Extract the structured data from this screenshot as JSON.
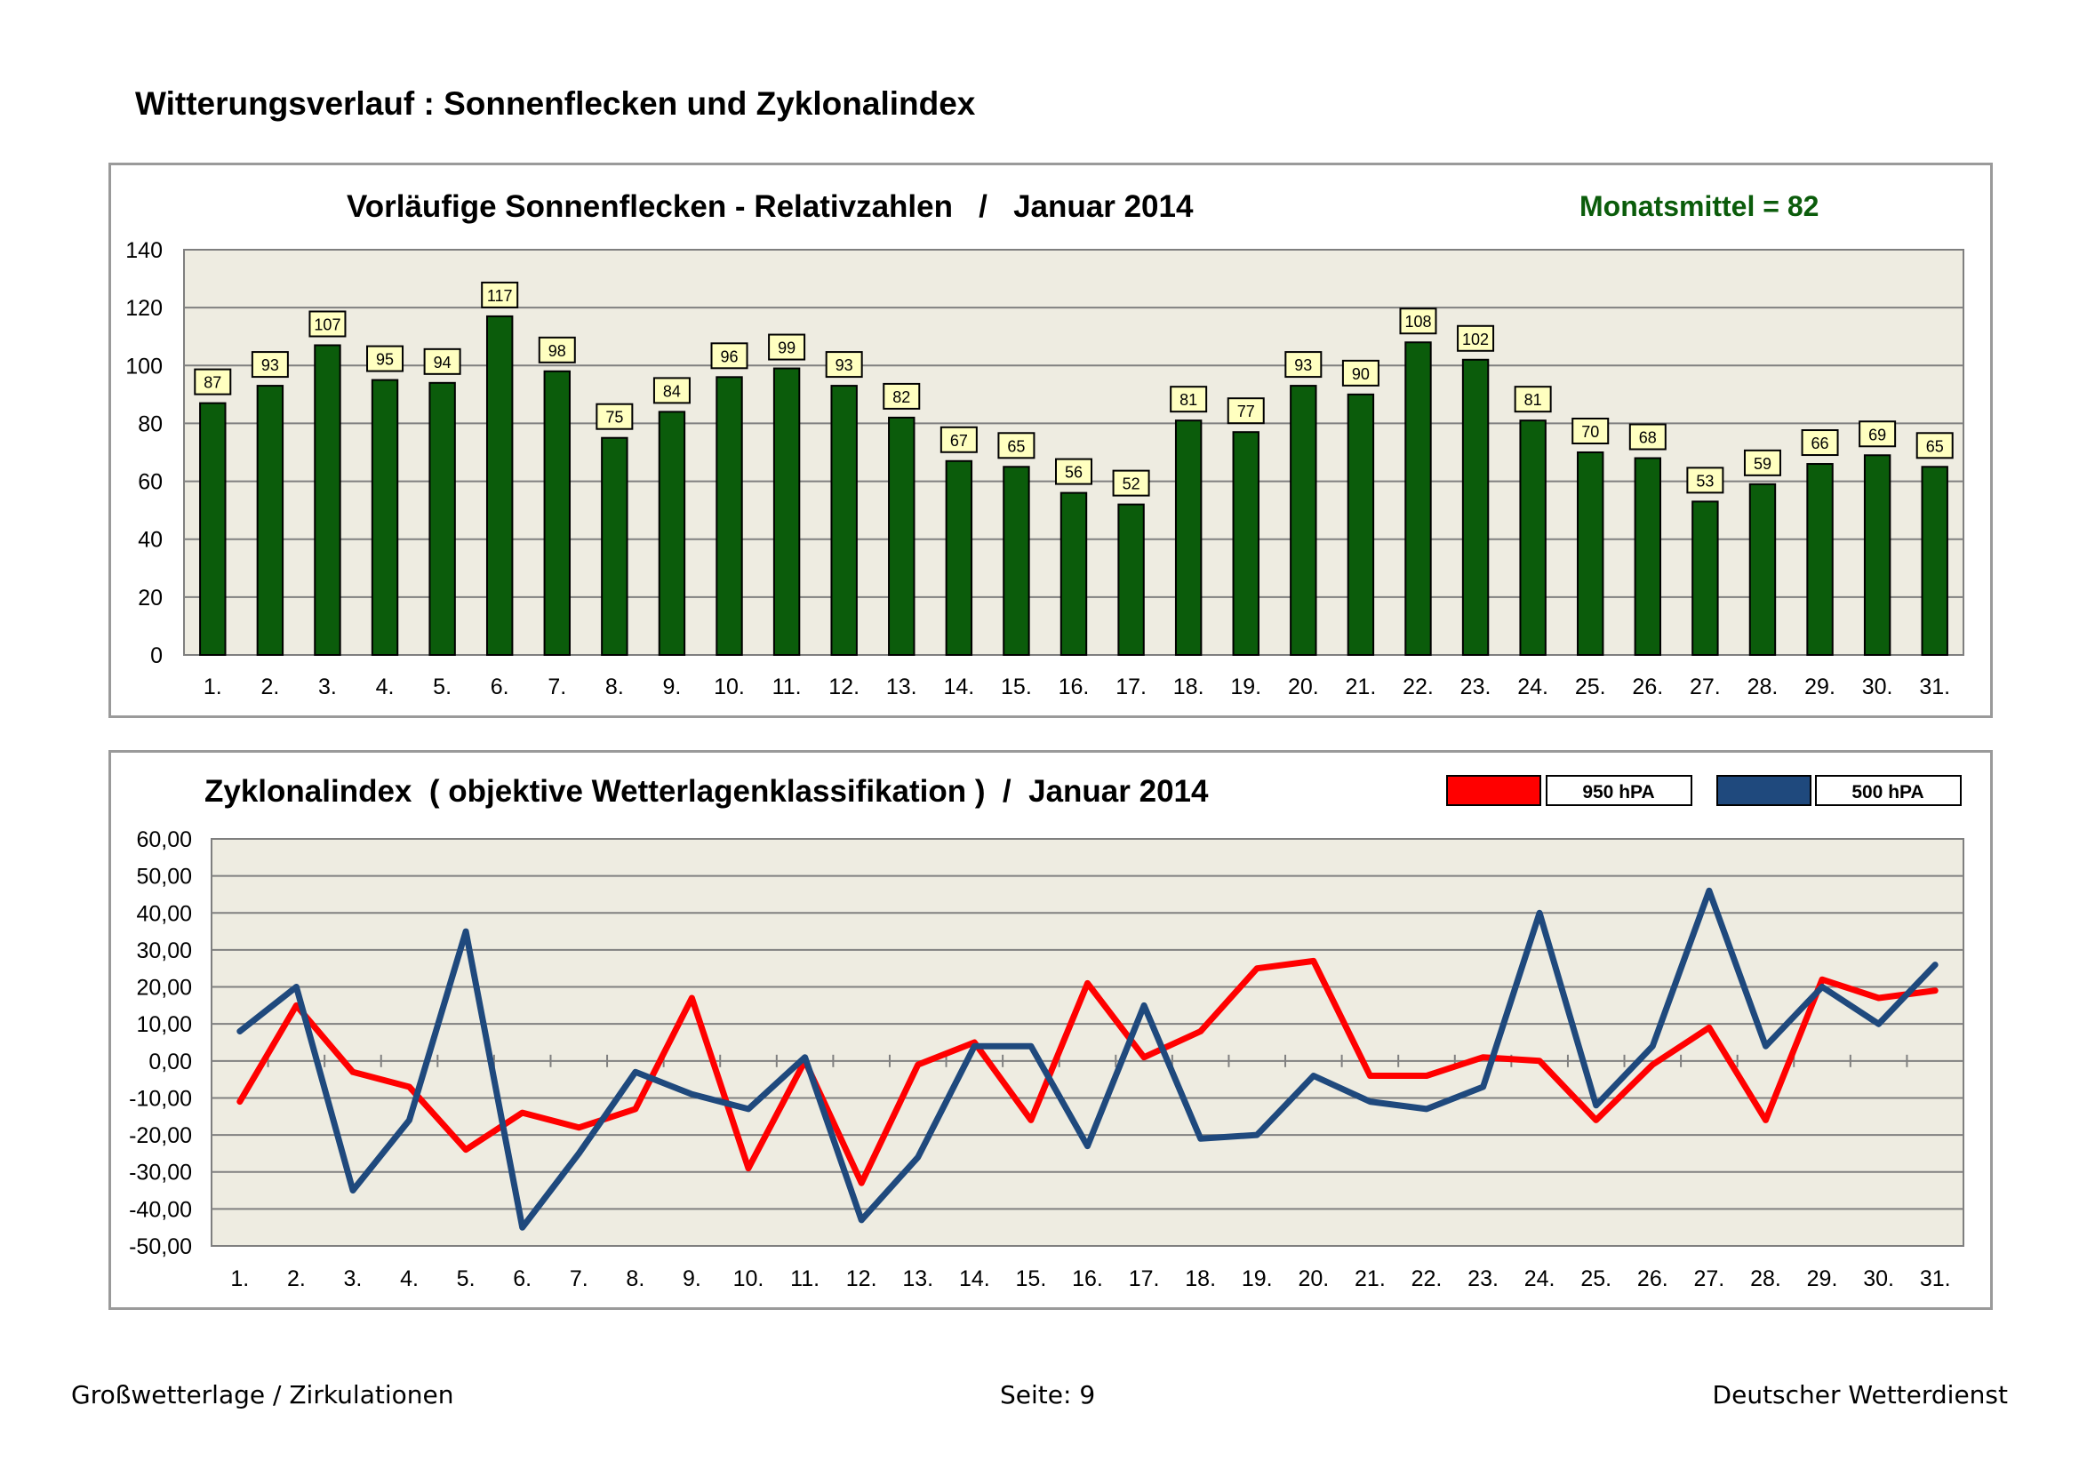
{
  "page_title": "Witterungsverlauf : Sonnenflecken und Zyklonalindex",
  "colors": {
    "bar_fill": "#0b5c0b",
    "plot_bg": "#eeece1",
    "label_bg": "#ffffc0",
    "monthly_mean": "#0b5c0b",
    "series_950": "#ff0000",
    "series_500": "#1f497d"
  },
  "chart_data": [
    {
      "type": "bar",
      "title": "Vorläufige Sonnenflecken - Relativzahlen   /   Januar 2014",
      "annotation": "Monatsmittel = 82",
      "categories": [
        "1.",
        "2.",
        "3.",
        "4.",
        "5.",
        "6.",
        "7.",
        "8.",
        "9.",
        "10.",
        "11.",
        "12.",
        "13.",
        "14.",
        "15.",
        "16.",
        "17.",
        "18.",
        "19.",
        "20.",
        "21.",
        "22.",
        "23.",
        "24.",
        "25.",
        "26.",
        "27.",
        "28.",
        "29.",
        "30.",
        "31."
      ],
      "values": [
        87,
        93,
        107,
        95,
        94,
        117,
        98,
        75,
        84,
        96,
        99,
        93,
        82,
        67,
        65,
        56,
        52,
        81,
        77,
        93,
        90,
        108,
        102,
        81,
        70,
        68,
        53,
        59,
        66,
        69,
        65
      ],
      "ylim": [
        0,
        140
      ],
      "yticks": [
        "0",
        "20",
        "40",
        "60",
        "80",
        "100",
        "120",
        "140"
      ],
      "grid": true,
      "xlabel": "",
      "ylabel": ""
    },
    {
      "type": "line",
      "title": "Zyklonalindex  ( objektive Wetterlagenklassifikation )  /  Januar 2014",
      "categories": [
        "1.",
        "2.",
        "3.",
        "4.",
        "5.",
        "6.",
        "7.",
        "8.",
        "9.",
        "10.",
        "11.",
        "12.",
        "13.",
        "14.",
        "15.",
        "16.",
        "17.",
        "18.",
        "19.",
        "20.",
        "21.",
        "22.",
        "23.",
        "24.",
        "25.",
        "26.",
        "27.",
        "28.",
        "29.",
        "30.",
        "31."
      ],
      "series": [
        {
          "name": "950 hPA",
          "values": [
            -11,
            15,
            -3,
            -7,
            -24,
            -14,
            -18,
            -13,
            17,
            -29,
            0,
            -33,
            -1,
            5,
            -16,
            21,
            1,
            8,
            25,
            27,
            -4,
            -4,
            1,
            0,
            -16,
            -1,
            9,
            -16,
            22,
            17,
            19
          ]
        },
        {
          "name": "500 hPA",
          "values": [
            8,
            20,
            -35,
            -16,
            35,
            -45,
            -25,
            -3,
            -9,
            -13,
            1,
            -43,
            -26,
            4,
            4,
            -23,
            15,
            -21,
            -20,
            -4,
            -11,
            -13,
            -7,
            40,
            -12,
            4,
            46,
            4,
            20,
            10,
            26
          ]
        }
      ],
      "ylim": [
        -50,
        60
      ],
      "yticks": [
        "-50,00",
        "-40,00",
        "-30,00",
        "-20,00",
        "-10,00",
        "0,00",
        "10,00",
        "20,00",
        "30,00",
        "40,00",
        "50,00",
        "60,00"
      ],
      "legend": "top-right",
      "grid": true,
      "xlabel": "",
      "ylabel": ""
    }
  ],
  "footer": {
    "left": "Großwetterlage / Zirkulationen",
    "center": "Seite: 9",
    "right": "Deutscher Wetterdienst"
  }
}
